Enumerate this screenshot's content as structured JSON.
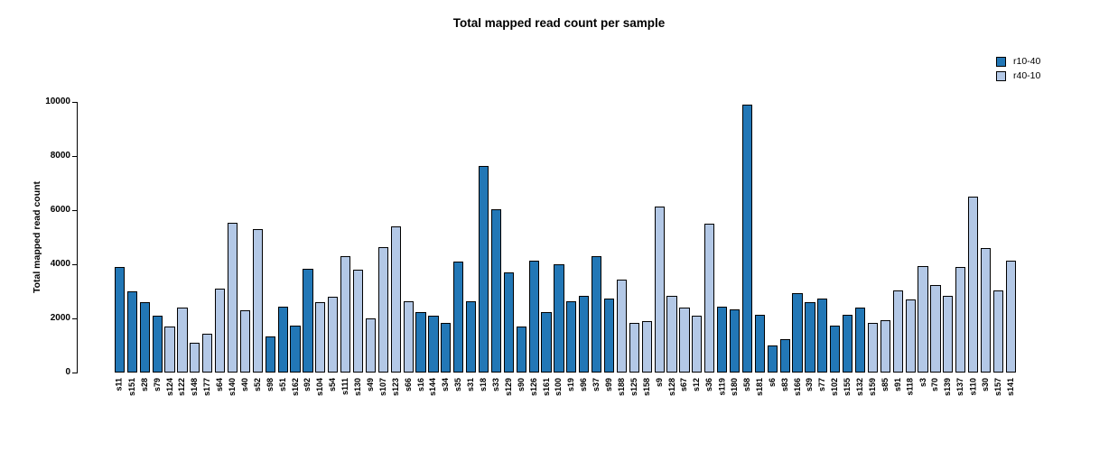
{
  "chart_data": {
    "type": "bar",
    "title": "Total mapped read count per sample",
    "ylabel": "Total mapped read count",
    "xlabel": "",
    "ylim": [
      0,
      10000
    ],
    "yticks": [
      0,
      2000,
      4000,
      6000,
      8000,
      10000
    ],
    "grid": false,
    "legend_position": "topright",
    "series": [
      {
        "name": "r10-40",
        "color": "#2277b6"
      },
      {
        "name": "r40-10",
        "color": "#b3c8e6"
      }
    ],
    "bars": [
      {
        "label": "s11",
        "value": 3900,
        "series": "r10-40"
      },
      {
        "label": "s151",
        "value": 3000,
        "series": "r10-40"
      },
      {
        "label": "s28",
        "value": 2600,
        "series": "r10-40"
      },
      {
        "label": "s79",
        "value": 2100,
        "series": "r10-40"
      },
      {
        "label": "s124",
        "value": 1700,
        "series": "r40-10"
      },
      {
        "label": "s122",
        "value": 2400,
        "series": "r40-10"
      },
      {
        "label": "s148",
        "value": 1100,
        "series": "r40-10"
      },
      {
        "label": "s177",
        "value": 1450,
        "series": "r40-10"
      },
      {
        "label": "s64",
        "value": 3100,
        "series": "r40-10"
      },
      {
        "label": "s140",
        "value": 5550,
        "series": "r40-10"
      },
      {
        "label": "s40",
        "value": 2300,
        "series": "r40-10"
      },
      {
        "label": "s52",
        "value": 5300,
        "series": "r40-10"
      },
      {
        "label": "s98",
        "value": 1350,
        "series": "r10-40"
      },
      {
        "label": "s51",
        "value": 2450,
        "series": "r10-40"
      },
      {
        "label": "s162",
        "value": 1750,
        "series": "r10-40"
      },
      {
        "label": "s92",
        "value": 3850,
        "series": "r10-40"
      },
      {
        "label": "s104",
        "value": 2600,
        "series": "r40-10"
      },
      {
        "label": "s54",
        "value": 2800,
        "series": "r40-10"
      },
      {
        "label": "s111",
        "value": 4300,
        "series": "r40-10"
      },
      {
        "label": "s130",
        "value": 3800,
        "series": "r40-10"
      },
      {
        "label": "s49",
        "value": 2000,
        "series": "r40-10"
      },
      {
        "label": "s107",
        "value": 4650,
        "series": "r40-10"
      },
      {
        "label": "s123",
        "value": 5400,
        "series": "r40-10"
      },
      {
        "label": "s66",
        "value": 2650,
        "series": "r40-10"
      },
      {
        "label": "s16",
        "value": 2250,
        "series": "r10-40"
      },
      {
        "label": "s144",
        "value": 2100,
        "series": "r10-40"
      },
      {
        "label": "s34",
        "value": 1850,
        "series": "r10-40"
      },
      {
        "label": "s35",
        "value": 4100,
        "series": "r10-40"
      },
      {
        "label": "s31",
        "value": 2650,
        "series": "r10-40"
      },
      {
        "label": "s18",
        "value": 7650,
        "series": "r10-40"
      },
      {
        "label": "s33",
        "value": 6050,
        "series": "r10-40"
      },
      {
        "label": "s129",
        "value": 3700,
        "series": "r10-40"
      },
      {
        "label": "s90",
        "value": 1700,
        "series": "r10-40"
      },
      {
        "label": "s126",
        "value": 4150,
        "series": "r10-40"
      },
      {
        "label": "s161",
        "value": 2250,
        "series": "r10-40"
      },
      {
        "label": "s100",
        "value": 4000,
        "series": "r10-40"
      },
      {
        "label": "s19",
        "value": 2650,
        "series": "r10-40"
      },
      {
        "label": "s96",
        "value": 2850,
        "series": "r10-40"
      },
      {
        "label": "s37",
        "value": 4300,
        "series": "r10-40"
      },
      {
        "label": "s99",
        "value": 2750,
        "series": "r10-40"
      },
      {
        "label": "s188",
        "value": 3450,
        "series": "r40-10"
      },
      {
        "label": "s125",
        "value": 1850,
        "series": "r40-10"
      },
      {
        "label": "s158",
        "value": 1900,
        "series": "r40-10"
      },
      {
        "label": "s9",
        "value": 6150,
        "series": "r40-10"
      },
      {
        "label": "s128",
        "value": 2850,
        "series": "r40-10"
      },
      {
        "label": "s67",
        "value": 2400,
        "series": "r40-10"
      },
      {
        "label": "s12",
        "value": 2100,
        "series": "r40-10"
      },
      {
        "label": "s36",
        "value": 5500,
        "series": "r40-10"
      },
      {
        "label": "s119",
        "value": 2450,
        "series": "r10-40"
      },
      {
        "label": "s180",
        "value": 2350,
        "series": "r10-40"
      },
      {
        "label": "s58",
        "value": 9900,
        "series": "r10-40"
      },
      {
        "label": "s181",
        "value": 2150,
        "series": "r10-40"
      },
      {
        "label": "s6",
        "value": 1000,
        "series": "r10-40"
      },
      {
        "label": "s83",
        "value": 1250,
        "series": "r10-40"
      },
      {
        "label": "s166",
        "value": 2950,
        "series": "r10-40"
      },
      {
        "label": "s39",
        "value": 2600,
        "series": "r10-40"
      },
      {
        "label": "s77",
        "value": 2750,
        "series": "r10-40"
      },
      {
        "label": "s102",
        "value": 1750,
        "series": "r10-40"
      },
      {
        "label": "s155",
        "value": 2150,
        "series": "r10-40"
      },
      {
        "label": "s132",
        "value": 2400,
        "series": "r10-40"
      },
      {
        "label": "s159",
        "value": 1850,
        "series": "r40-10"
      },
      {
        "label": "s85",
        "value": 1950,
        "series": "r40-10"
      },
      {
        "label": "s91",
        "value": 3050,
        "series": "r40-10"
      },
      {
        "label": "s118",
        "value": 2700,
        "series": "r40-10"
      },
      {
        "label": "s3",
        "value": 3950,
        "series": "r40-10"
      },
      {
        "label": "s70",
        "value": 3250,
        "series": "r40-10"
      },
      {
        "label": "s139",
        "value": 2850,
        "series": "r40-10"
      },
      {
        "label": "s137",
        "value": 3900,
        "series": "r40-10"
      },
      {
        "label": "s110",
        "value": 6500,
        "series": "r40-10"
      },
      {
        "label": "s30",
        "value": 4600,
        "series": "r40-10"
      },
      {
        "label": "s157",
        "value": 3050,
        "series": "r40-10"
      },
      {
        "label": "s141",
        "value": 4150,
        "series": "r40-10"
      }
    ]
  }
}
